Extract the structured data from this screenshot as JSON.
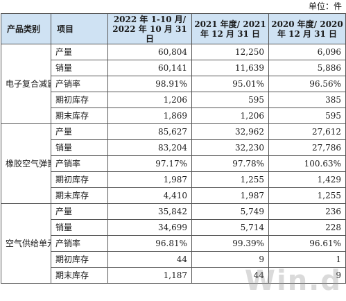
{
  "unit_label": "单位：件",
  "headers": {
    "category": "产品类别",
    "item": "项目",
    "period1": "2022 年 1-10 月/ 2022 年 10 月 31 日",
    "period2": "2021 年度/ 2021 年 12 月 31 日",
    "period3": "2020 年度/ 2020 年 12 月 31 日"
  },
  "groups": [
    {
      "category": "电子复合减震器",
      "rows": [
        {
          "item": "产量",
          "v1": "60,804",
          "v2": "12,250",
          "v3": "6,096"
        },
        {
          "item": "销量",
          "v1": "60,141",
          "v2": "11,639",
          "v3": "5,886"
        },
        {
          "item": "产销率",
          "v1": "98.91%",
          "v2": "95.01%",
          "v3": "96.56%"
        },
        {
          "item": "期初库存",
          "v1": "1,206",
          "v2": "595",
          "v3": "385"
        },
        {
          "item": "期末库存",
          "v1": "1,869",
          "v2": "1,206",
          "v3": "595"
        }
      ]
    },
    {
      "category": "橡胶空气弹簧及组件",
      "rows": [
        {
          "item": "产量",
          "v1": "85,627",
          "v2": "32,962",
          "v3": "27,612"
        },
        {
          "item": "销量",
          "v1": "83,204",
          "v2": "32,230",
          "v3": "27,786"
        },
        {
          "item": "产销率",
          "v1": "97.17%",
          "v2": "97.78%",
          "v3": "100.63%"
        },
        {
          "item": "期初库存",
          "v1": "1,987",
          "v2": "1,255",
          "v3": "1,429"
        },
        {
          "item": "期末库存",
          "v1": "4,410",
          "v2": "1,987",
          "v3": "1,255"
        }
      ]
    },
    {
      "category": "空气供给单元",
      "rows": [
        {
          "item": "产量",
          "v1": "35,842",
          "v2": "5,749",
          "v3": "236"
        },
        {
          "item": "销量",
          "v1": "34,699",
          "v2": "5,714",
          "v3": "228"
        },
        {
          "item": "产销率",
          "v1": "96.81%",
          "v2": "99.39%",
          "v3": "96.61%"
        },
        {
          "item": "期初库存",
          "v1": "44",
          "v2": "9",
          "v3": "1"
        },
        {
          "item": "期末库存",
          "v1": "1,187",
          "v2": "44",
          "v3": "9"
        }
      ]
    }
  ],
  "watermark_text": "Win.d"
}
